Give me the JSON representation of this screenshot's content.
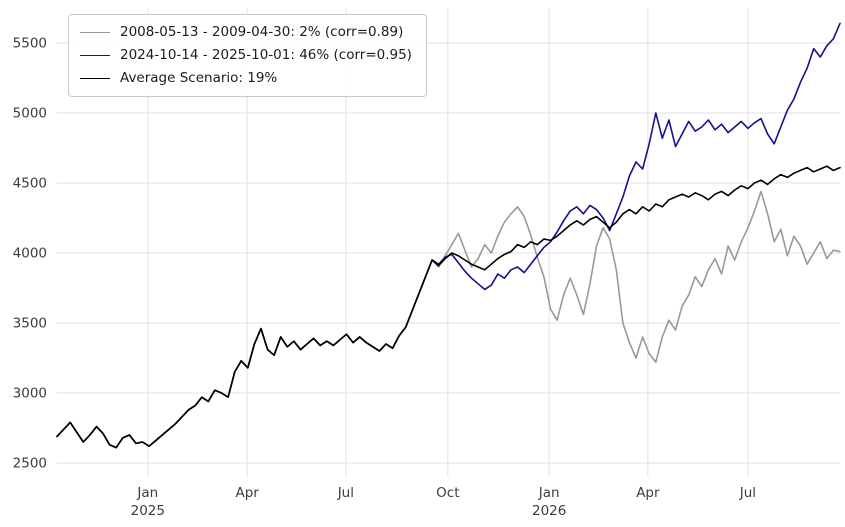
{
  "figure": {
    "background": "#ffffff",
    "grid_color": "#e2e2e8",
    "tick_label_color": "#3c3c3c"
  },
  "chart_data": {
    "type": "line",
    "grid": true,
    "legend_position": "upper left",
    "ylim": [
      2400,
      5750
    ],
    "yticks": [
      2500,
      3000,
      3500,
      4000,
      4500,
      5000,
      5500
    ],
    "xticks": [
      {
        "index": 13.8,
        "label": "Jan",
        "sublabel": "2025"
      },
      {
        "index": 28.9,
        "label": "Apr",
        "sublabel": ""
      },
      {
        "index": 43.9,
        "label": "Jul",
        "sublabel": ""
      },
      {
        "index": 59.4,
        "label": "Oct",
        "sublabel": ""
      },
      {
        "index": 74.8,
        "label": "Jan",
        "sublabel": "2026"
      },
      {
        "index": 89.8,
        "label": "Apr",
        "sublabel": ""
      },
      {
        "index": 105.0,
        "label": "Jul",
        "sublabel": ""
      }
    ],
    "series": [
      {
        "name": "2008-05-13 - 2009-04-30: 2% (corr=0.89)",
        "color": "#999999",
        "values": [
          2690,
          2740,
          2790,
          2720,
          2650,
          2700,
          2760,
          2710,
          2630,
          2610,
          2680,
          2700,
          2640,
          2650,
          2620,
          2660,
          2700,
          2740,
          2780,
          2830,
          2880,
          2910,
          2970,
          2940,
          3020,
          3000,
          2970,
          3150,
          3230,
          3180,
          3350,
          3460,
          3310,
          3270,
          3400,
          3330,
          3370,
          3310,
          3350,
          3390,
          3340,
          3370,
          3340,
          3380,
          3420,
          3360,
          3400,
          3360,
          3330,
          3300,
          3350,
          3320,
          3410,
          3470,
          3590,
          3710,
          3830,
          3950,
          3900,
          3980,
          4060,
          4140,
          4020,
          3900,
          3960,
          4060,
          4000,
          4120,
          4220,
          4280,
          4330,
          4260,
          4130,
          3970,
          3830,
          3600,
          3520,
          3700,
          3820,
          3700,
          3560,
          3780,
          4050,
          4180,
          4100,
          3880,
          3500,
          3360,
          3250,
          3400,
          3280,
          3220,
          3400,
          3520,
          3450,
          3620,
          3700,
          3830,
          3760,
          3880,
          3960,
          3850,
          4050,
          3950,
          4080,
          4180,
          4300,
          4440,
          4280,
          4080,
          4170,
          3980,
          4120,
          4050,
          3920,
          4000,
          4080,
          3960,
          4020,
          4010
        ]
      },
      {
        "name": "2024-10-14 - 2025-10-01: 46% (corr=0.95)",
        "color": "#12128f",
        "values": [
          2690,
          2740,
          2790,
          2720,
          2650,
          2700,
          2760,
          2710,
          2630,
          2610,
          2680,
          2700,
          2640,
          2650,
          2620,
          2660,
          2700,
          2740,
          2780,
          2830,
          2880,
          2910,
          2970,
          2940,
          3020,
          3000,
          2970,
          3150,
          3230,
          3180,
          3350,
          3460,
          3310,
          3270,
          3400,
          3330,
          3370,
          3310,
          3350,
          3390,
          3340,
          3370,
          3340,
          3380,
          3420,
          3360,
          3400,
          3360,
          3330,
          3300,
          3350,
          3320,
          3410,
          3470,
          3590,
          3710,
          3830,
          3950,
          3920,
          3970,
          3990,
          3930,
          3870,
          3820,
          3780,
          3740,
          3770,
          3850,
          3820,
          3880,
          3900,
          3860,
          3920,
          3980,
          4040,
          4080,
          4150,
          4230,
          4300,
          4330,
          4280,
          4340,
          4310,
          4250,
          4160,
          4280,
          4400,
          4550,
          4650,
          4600,
          4780,
          5000,
          4820,
          4950,
          4760,
          4850,
          4940,
          4870,
          4900,
          4950,
          4880,
          4920,
          4860,
          4900,
          4940,
          4890,
          4930,
          4960,
          4850,
          4780,
          4900,
          5020,
          5100,
          5220,
          5320,
          5460,
          5400,
          5480,
          5530,
          5640
        ]
      },
      {
        "name": "Average Scenario: 19%",
        "color": "#000000",
        "values": [
          2690,
          2740,
          2790,
          2720,
          2650,
          2700,
          2760,
          2710,
          2630,
          2610,
          2680,
          2700,
          2640,
          2650,
          2620,
          2660,
          2700,
          2740,
          2780,
          2830,
          2880,
          2910,
          2970,
          2940,
          3020,
          3000,
          2970,
          3150,
          3230,
          3180,
          3350,
          3460,
          3310,
          3270,
          3400,
          3330,
          3370,
          3310,
          3350,
          3390,
          3340,
          3370,
          3340,
          3380,
          3420,
          3360,
          3400,
          3360,
          3330,
          3300,
          3350,
          3320,
          3410,
          3470,
          3590,
          3710,
          3830,
          3950,
          3910,
          3960,
          4000,
          3980,
          3950,
          3920,
          3900,
          3880,
          3920,
          3960,
          3990,
          4010,
          4060,
          4040,
          4080,
          4060,
          4100,
          4090,
          4120,
          4160,
          4200,
          4230,
          4200,
          4240,
          4260,
          4220,
          4180,
          4220,
          4280,
          4310,
          4280,
          4330,
          4300,
          4350,
          4330,
          4380,
          4400,
          4420,
          4400,
          4430,
          4410,
          4380,
          4420,
          4440,
          4410,
          4450,
          4480,
          4460,
          4500,
          4520,
          4490,
          4530,
          4560,
          4540,
          4570,
          4590,
          4610,
          4580,
          4600,
          4620,
          4590,
          4610
        ]
      }
    ]
  }
}
